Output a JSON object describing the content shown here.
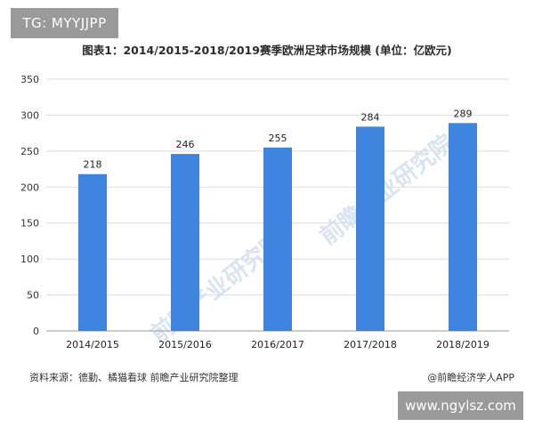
{
  "badges": {
    "top_left": "TG: MYYJJPP",
    "bottom_right": "www.ngylsz.com"
  },
  "chart_data": {
    "type": "bar",
    "title": "图表1：2014/2015-2018/2019赛季欧洲足球市场规模 (单位：亿欧元)",
    "categories": [
      "2014/2015",
      "2015/2016",
      "2016/2017",
      "2017/2018",
      "2018/2019"
    ],
    "values": [
      218,
      246,
      255,
      284,
      289
    ],
    "ylim": [
      0,
      350
    ],
    "yticks": [
      0,
      50,
      100,
      150,
      200,
      250,
      300,
      350
    ],
    "grid": true,
    "legend": "none",
    "bar_color": "#3f85e0",
    "xlabel": "",
    "ylabel": ""
  },
  "footer": {
    "source": "资料来源：德勤、橘猫看球 前瞻产业研究院整理",
    "app": "@前瞻经济学人APP"
  },
  "watermark": {
    "text": "前瞻产业研究院",
    "color": "#d9e4f2"
  }
}
